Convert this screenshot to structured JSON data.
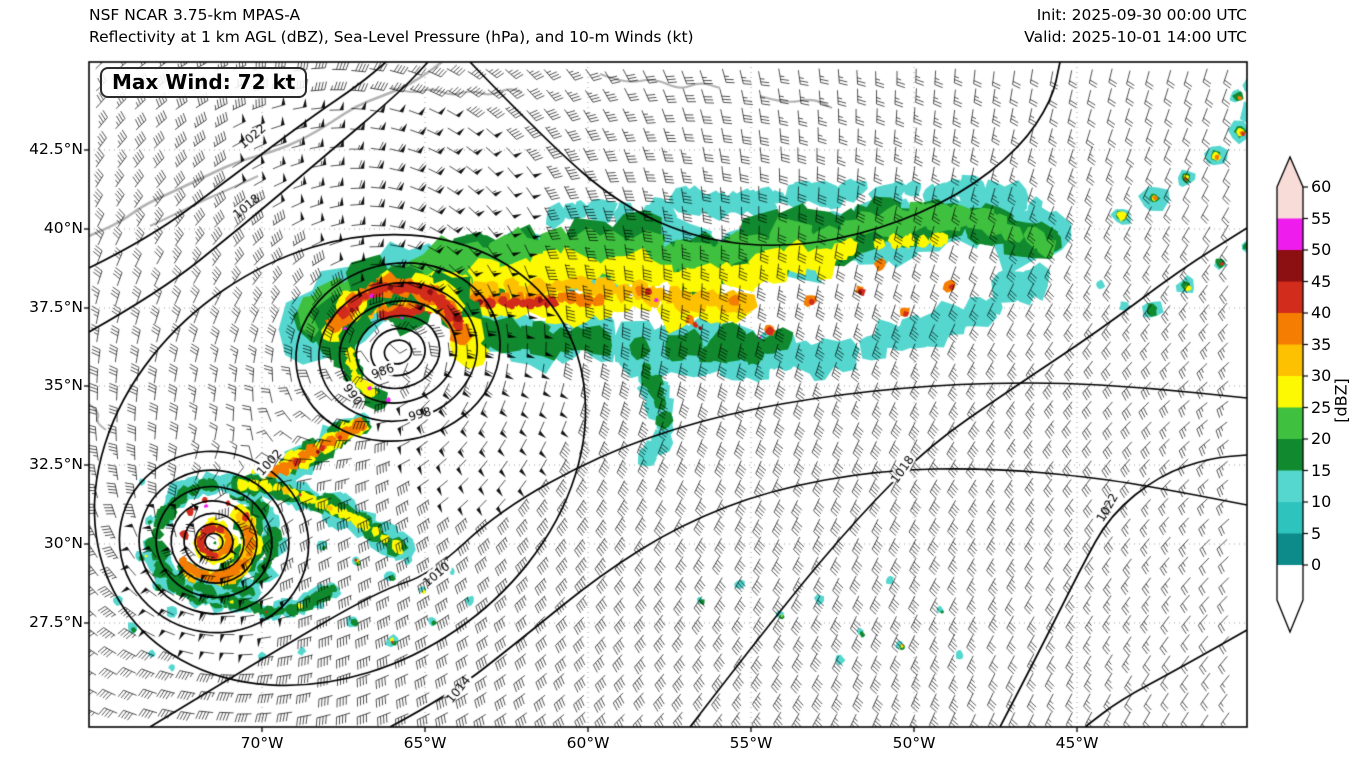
{
  "header": {
    "title_line1": "NSF NCAR 3.75-km MPAS-A",
    "title_line2": "Reflectivity at 1 km AGL (dBZ), Sea-Level Pressure (hPa), and 10-m Winds (kt)",
    "init": "Init: 2025-09-30 00:00 UTC",
    "valid": "Valid: 2025-10-01 14:00 UTC"
  },
  "map": {
    "max_wind": "Max Wind: 72 kt",
    "x_tick_labels": [
      "70°W",
      "65°W",
      "60°W",
      "55°W",
      "50°W",
      "45°W"
    ],
    "y_tick_labels": [
      "42.5°N",
      "40°N",
      "37.5°N",
      "35°N",
      "32.5°N",
      "30°N",
      "27.5°N"
    ],
    "isobar_label_instances": [
      "986",
      "990",
      "998",
      "1002",
      "1010",
      "1014",
      "1018",
      "1022",
      "1018",
      "1022"
    ]
  },
  "colorbar": {
    "label": "[dBZ]",
    "ticks_top_to_bottom": [
      "60",
      "55",
      "50",
      "45",
      "40",
      "35",
      "30",
      "25",
      "20",
      "15",
      "10",
      "5",
      "0"
    ],
    "segment_colors_top_to_bottom": [
      "#f8dcd8",
      "#ee1dee",
      "#8c0f12",
      "#d22c1d",
      "#f47d02",
      "#fdc102",
      "#fdf902",
      "#3fc13f",
      "#11892e",
      "#55d7cf",
      "#2fc3bd",
      "#0d8a8a"
    ],
    "over_color": "#f8dcd8",
    "under_color": "#ffffff"
  },
  "chart_data": {
    "type": "heatmap",
    "subtype": "weather-model-forecast-map",
    "model": "NSF NCAR 3.75-km MPAS-A",
    "title": "Reflectivity at 1 km AGL (dBZ), Sea-Level Pressure (hPa), and 10-m Winds (kt)",
    "init_time": "2025-09-30 00:00 UTC",
    "valid_time": "2025-10-01 14:00 UTC",
    "max_wind_kt": 72,
    "x_axis": {
      "ticks": [
        "70°W",
        "65°W",
        "60°W",
        "55°W",
        "50°W",
        "45°W"
      ],
      "approx_range": [
        "75.3°W",
        "39.7°W"
      ]
    },
    "y_axis": {
      "ticks": [
        "42.5°N",
        "40°N",
        "37.5°N",
        "35°N",
        "32.5°N",
        "30°N",
        "27.5°N"
      ],
      "approx_range": [
        "24.4°N",
        "45.2°N"
      ]
    },
    "colorbar": {
      "label": "[dBZ]",
      "ticks": [
        0,
        5,
        10,
        15,
        20,
        25,
        30,
        35,
        40,
        45,
        50,
        55,
        60
      ],
      "extend": "both"
    },
    "isobar_labels_hPa": [
      986,
      990,
      998,
      1002,
      1010,
      1014,
      1018,
      1022
    ],
    "features": [
      {
        "type": "low",
        "desc": "occluded extratropical cyclone, innermost labeled isobar 986 hPa",
        "approx_lon": "65.5°W",
        "approx_lat": "36°N"
      },
      {
        "type": "tropical-cyclone",
        "desc": "compact hurricane-like vortex with eye and spiral rainbands, max wind 72 kt",
        "approx_lon": "71°W",
        "approx_lat": "30.5°N"
      },
      {
        "type": "rainband",
        "desc": "comma-shaped precipitation band 25-50 dBZ arcing from 65°W to 46°W between 36°N and 41°N"
      },
      {
        "type": "cells",
        "desc": "scattered convective cells along northeast corner diagonal"
      },
      {
        "type": "high",
        "desc": "ridge to the southeast, outermost labeled isobar 1022 hPa"
      }
    ]
  }
}
